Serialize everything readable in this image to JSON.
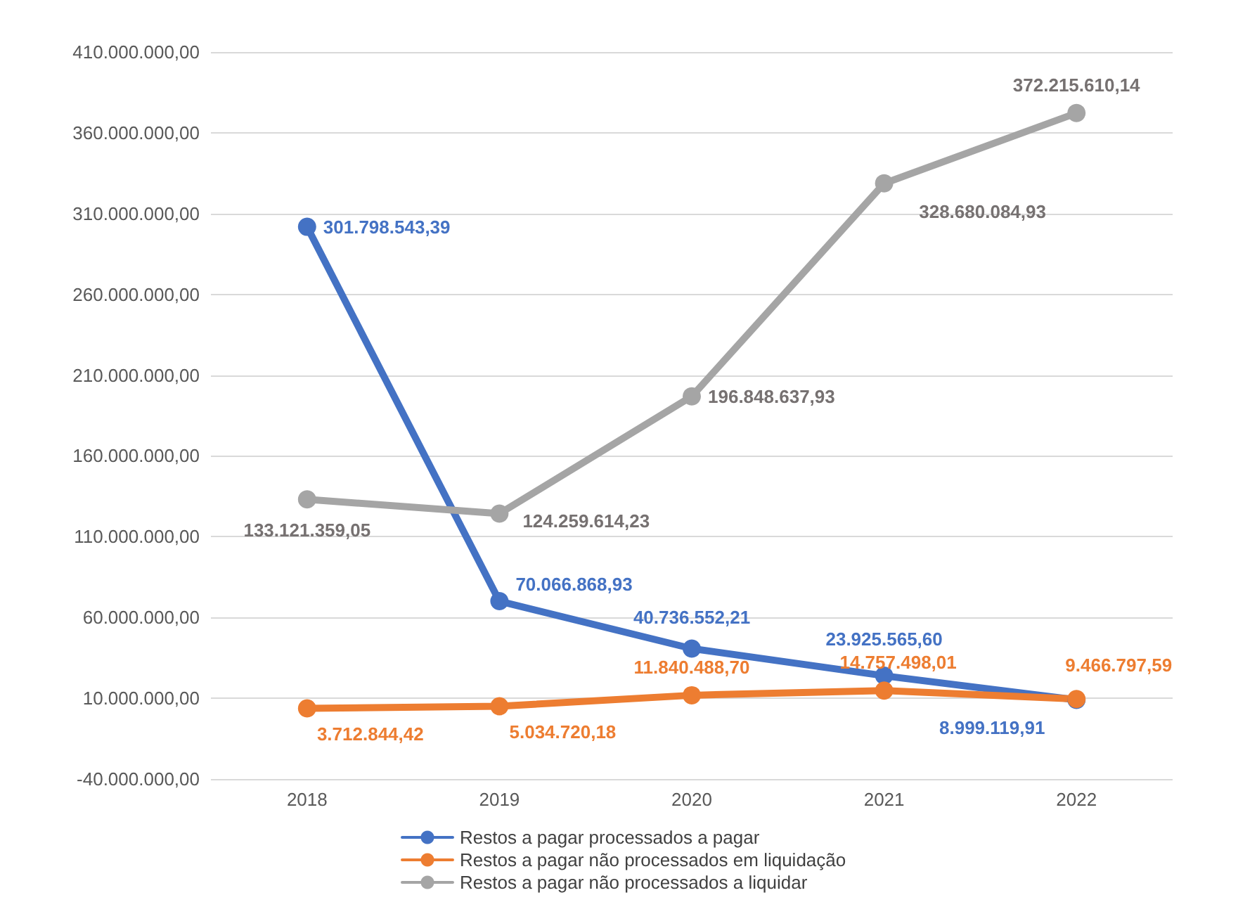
{
  "chart_data": {
    "type": "line",
    "categories": [
      "2018",
      "2019",
      "2020",
      "2021",
      "2022"
    ],
    "series": [
      {
        "name": "Restos a pagar processados a pagar",
        "color": "#4472c4",
        "values": [
          301798543.39,
          70066868.93,
          40736552.21,
          23925565.6,
          8999119.91
        ],
        "value_labels": [
          "301.798.543,39",
          "70.066.868,93",
          "40.736.552,21",
          "23.925.565,60",
          "8.999.119,91"
        ]
      },
      {
        "name": "Restos a pagar não processados em liquidação",
        "color": "#ed7d31",
        "values": [
          3712844.42,
          5034720.18,
          11840488.7,
          14757498.01,
          9466797.59
        ],
        "value_labels": [
          "3.712.844,42",
          "5.034.720,18",
          "11.840.488,70",
          "14.757.498,01",
          "9.466.797,59"
        ]
      },
      {
        "name": "Restos a pagar não processados a liquidar",
        "color": "#a5a5a5",
        "values": [
          133121359.05,
          124259614.23,
          196848637.93,
          328680084.93,
          372215610.14
        ],
        "value_labels": [
          "133.121.359,05",
          "124.259.614,23",
          "196.848.637,93",
          "328.680.084,93",
          "372.215.610,14"
        ]
      }
    ],
    "ylim": [
      -40000000,
      410000000
    ],
    "yticks": [
      {
        "value": -40000000,
        "label": "-40.000.000,00"
      },
      {
        "value": 10000000,
        "label": "10.000.000,00"
      },
      {
        "value": 60000000,
        "label": "60.000.000,00"
      },
      {
        "value": 110000000,
        "label": "110.000.000,00"
      },
      {
        "value": 160000000,
        "label": "160.000.000,00"
      },
      {
        "value": 210000000,
        "label": "210.000.000,00"
      },
      {
        "value": 260000000,
        "label": "260.000.000,00"
      },
      {
        "value": 310000000,
        "label": "310.000.000,00"
      },
      {
        "value": 360000000,
        "label": "360.000.000,00"
      },
      {
        "value": 410000000,
        "label": "410.000.000,00"
      }
    ],
    "grid": "y",
    "legend": "bottom",
    "marker": "circle",
    "line_style": "solid"
  }
}
